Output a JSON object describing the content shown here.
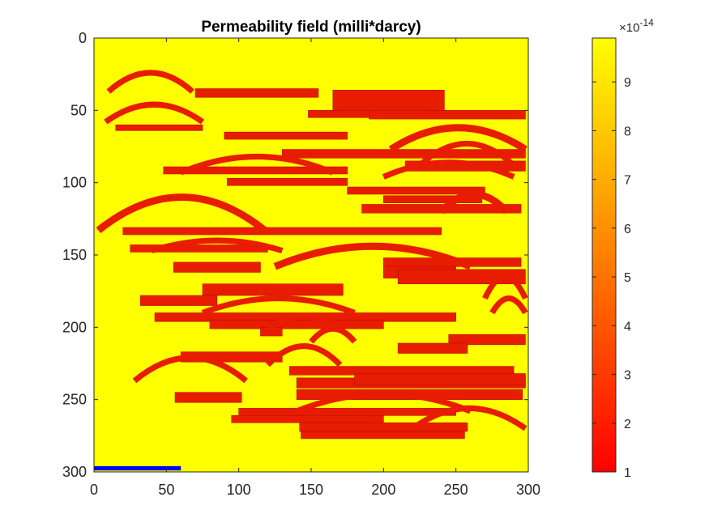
{
  "chart_data": {
    "type": "heatmap",
    "title": "Permeability field (milli*darcy)",
    "xlim": [
      0,
      300
    ],
    "ylim": [
      0,
      300
    ],
    "y_direction": "reversed",
    "x_ticks": [
      "0",
      "50",
      "100",
      "150",
      "200",
      "250",
      "300"
    ],
    "y_ticks": [
      "0",
      "50",
      "100",
      "150",
      "200",
      "250",
      "300"
    ],
    "x_tick_values": [
      0,
      50,
      100,
      150,
      200,
      250,
      300
    ],
    "y_tick_values": [
      0,
      50,
      100,
      150,
      200,
      250,
      300
    ],
    "grid": false,
    "background_value": 9.9,
    "colormap": "autumn",
    "colorbar": {
      "range": [
        1,
        9.9
      ],
      "ticks": [
        "1",
        "2",
        "3",
        "4",
        "5",
        "6",
        "7",
        "8",
        "9"
      ],
      "tick_values": [
        1,
        2,
        3,
        4,
        5,
        6,
        7,
        8,
        9
      ],
      "exponent_base": "×10",
      "exponent": "-14",
      "placement": "right"
    },
    "low_perm_value": 1,
    "low_perm_color": "#e81c00",
    "high_perm_color": "#ffff00",
    "channels": {
      "bars": [
        [
          70,
          155,
          35,
          41
        ],
        [
          165,
          242,
          36,
          51
        ],
        [
          148,
          230,
          50,
          55
        ],
        [
          15,
          75,
          60,
          64
        ],
        [
          90,
          175,
          65,
          70
        ],
        [
          190,
          298,
          50,
          56
        ],
        [
          130,
          298,
          77,
          83
        ],
        [
          215,
          298,
          85,
          92
        ],
        [
          48,
          175,
          89,
          94
        ],
        [
          92,
          175,
          97,
          102
        ],
        [
          175,
          270,
          103,
          108
        ],
        [
          200,
          268,
          109,
          114
        ],
        [
          185,
          295,
          115,
          121
        ],
        [
          20,
          240,
          131,
          136
        ],
        [
          25,
          120,
          143,
          148
        ],
        [
          55,
          115,
          155,
          162
        ],
        [
          200,
          295,
          152,
          158
        ],
        [
          200,
          250,
          158,
          166
        ],
        [
          210,
          298,
          160,
          170
        ],
        [
          75,
          172,
          170,
          178
        ],
        [
          32,
          85,
          178,
          185
        ],
        [
          42,
          250,
          190,
          196
        ],
        [
          80,
          200,
          195,
          201
        ],
        [
          115,
          130,
          200,
          206
        ],
        [
          245,
          298,
          205,
          212
        ],
        [
          210,
          258,
          211,
          218
        ],
        [
          60,
          130,
          217,
          224
        ],
        [
          135,
          290,
          227,
          233
        ],
        [
          140,
          298,
          235,
          242
        ],
        [
          140,
          296,
          243,
          250
        ],
        [
          180,
          298,
          232,
          240
        ],
        [
          56,
          102,
          245,
          252
        ],
        [
          100,
          250,
          256,
          261
        ],
        [
          95,
          200,
          261,
          266
        ],
        [
          142,
          258,
          266,
          272
        ],
        [
          143,
          256,
          272,
          277
        ]
      ],
      "arcs": [
        [
          10,
          68,
          24,
          37,
          4
        ],
        [
          8,
          75,
          46,
          58,
          4
        ],
        [
          205,
          298,
          62,
          77,
          5
        ],
        [
          225,
          290,
          73,
          88,
          4
        ],
        [
          200,
          290,
          86,
          96,
          4
        ],
        [
          60,
          165,
          82,
          93,
          4
        ],
        [
          240,
          285,
          108,
          120,
          5
        ],
        [
          3,
          118,
          110,
          133,
          5
        ],
        [
          40,
          130,
          140,
          147,
          4
        ],
        [
          125,
          260,
          144,
          158,
          5
        ],
        [
          270,
          298,
          165,
          180,
          4
        ],
        [
          275,
          298,
          180,
          190,
          4
        ],
        [
          75,
          180,
          180,
          190,
          4
        ],
        [
          120,
          170,
          192,
          201,
          4
        ],
        [
          150,
          180,
          201,
          210,
          4
        ],
        [
          28,
          105,
          221,
          237,
          4
        ],
        [
          120,
          170,
          213,
          226,
          4
        ],
        [
          140,
          260,
          246,
          258,
          4
        ],
        [
          220,
          298,
          256,
          270,
          4
        ]
      ]
    },
    "highlight_bar": {
      "x": [
        0,
        60
      ],
      "y": [
        296,
        299
      ],
      "color": "#0000ff"
    }
  }
}
